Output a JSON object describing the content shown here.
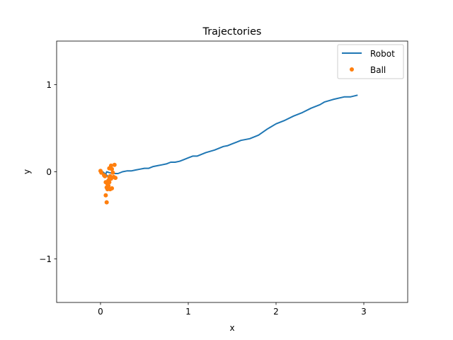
{
  "chart_data": {
    "type": "line",
    "title": "Trajectories",
    "xlabel": "x",
    "ylabel": "y",
    "xlim": [
      -0.5,
      3.5
    ],
    "ylim": [
      -1.5,
      1.5
    ],
    "xticks": [
      0,
      1,
      2,
      3
    ],
    "yticks": [
      -1,
      0,
      1
    ],
    "xtick_labels": [
      "0",
      "1",
      "2",
      "3"
    ],
    "ytick_labels": [
      "−1",
      "0",
      "1"
    ],
    "grid": false,
    "legend_position": "top-right",
    "series": [
      {
        "name": "Robot",
        "kind": "line",
        "color": "#1f77b4",
        "points": [
          [
            0.0,
            0.02
          ],
          [
            0.05,
            -0.02
          ],
          [
            0.1,
            -0.07
          ],
          [
            0.06,
            -0.03
          ],
          [
            0.07,
            0.0
          ],
          [
            0.1,
            -0.01
          ],
          [
            0.15,
            -0.02
          ],
          [
            0.2,
            -0.02
          ],
          [
            0.25,
            0.0
          ],
          [
            0.3,
            0.01
          ],
          [
            0.35,
            0.01
          ],
          [
            0.4,
            0.02
          ],
          [
            0.45,
            0.03
          ],
          [
            0.5,
            0.04
          ],
          [
            0.55,
            0.04
          ],
          [
            0.6,
            0.06
          ],
          [
            0.65,
            0.07
          ],
          [
            0.7,
            0.08
          ],
          [
            0.75,
            0.09
          ],
          [
            0.8,
            0.11
          ],
          [
            0.85,
            0.11
          ],
          [
            0.9,
            0.12
          ],
          [
            0.95,
            0.14
          ],
          [
            1.0,
            0.16
          ],
          [
            1.05,
            0.18
          ],
          [
            1.1,
            0.18
          ],
          [
            1.15,
            0.2
          ],
          [
            1.2,
            0.22
          ],
          [
            1.3,
            0.25
          ],
          [
            1.35,
            0.27
          ],
          [
            1.4,
            0.29
          ],
          [
            1.45,
            0.3
          ],
          [
            1.5,
            0.32
          ],
          [
            1.55,
            0.34
          ],
          [
            1.6,
            0.36
          ],
          [
            1.7,
            0.38
          ],
          [
            1.75,
            0.4
          ],
          [
            1.8,
            0.42
          ],
          [
            1.9,
            0.49
          ],
          [
            2.0,
            0.55
          ],
          [
            2.1,
            0.59
          ],
          [
            2.2,
            0.64
          ],
          [
            2.3,
            0.68
          ],
          [
            2.4,
            0.73
          ],
          [
            2.5,
            0.77
          ],
          [
            2.55,
            0.8
          ],
          [
            2.65,
            0.83
          ],
          [
            2.78,
            0.86
          ],
          [
            2.85,
            0.86
          ],
          [
            2.93,
            0.88
          ]
        ]
      },
      {
        "name": "Ball",
        "kind": "scatter",
        "color": "#ff7f0e",
        "points": [
          [
            0.0,
            0.01
          ],
          [
            0.01,
            -0.01
          ],
          [
            0.04,
            -0.04
          ],
          [
            0.06,
            -0.12
          ],
          [
            0.07,
            -0.18
          ],
          [
            0.08,
            -0.14
          ],
          [
            0.09,
            -0.1
          ],
          [
            0.1,
            -0.06
          ],
          [
            0.11,
            -0.05
          ],
          [
            0.12,
            -0.08
          ],
          [
            0.13,
            -0.19
          ],
          [
            0.11,
            -0.2
          ],
          [
            0.09,
            -0.16
          ],
          [
            0.08,
            -0.2
          ],
          [
            0.06,
            -0.27
          ],
          [
            0.07,
            -0.35
          ],
          [
            0.1,
            0.04
          ],
          [
            0.12,
            0.07
          ],
          [
            0.16,
            0.08
          ],
          [
            0.13,
            0.03
          ],
          [
            0.14,
            -0.01
          ],
          [
            0.15,
            -0.06
          ],
          [
            0.17,
            -0.07
          ],
          [
            0.05,
            -0.05
          ],
          [
            0.1,
            -0.12
          ]
        ]
      }
    ]
  }
}
